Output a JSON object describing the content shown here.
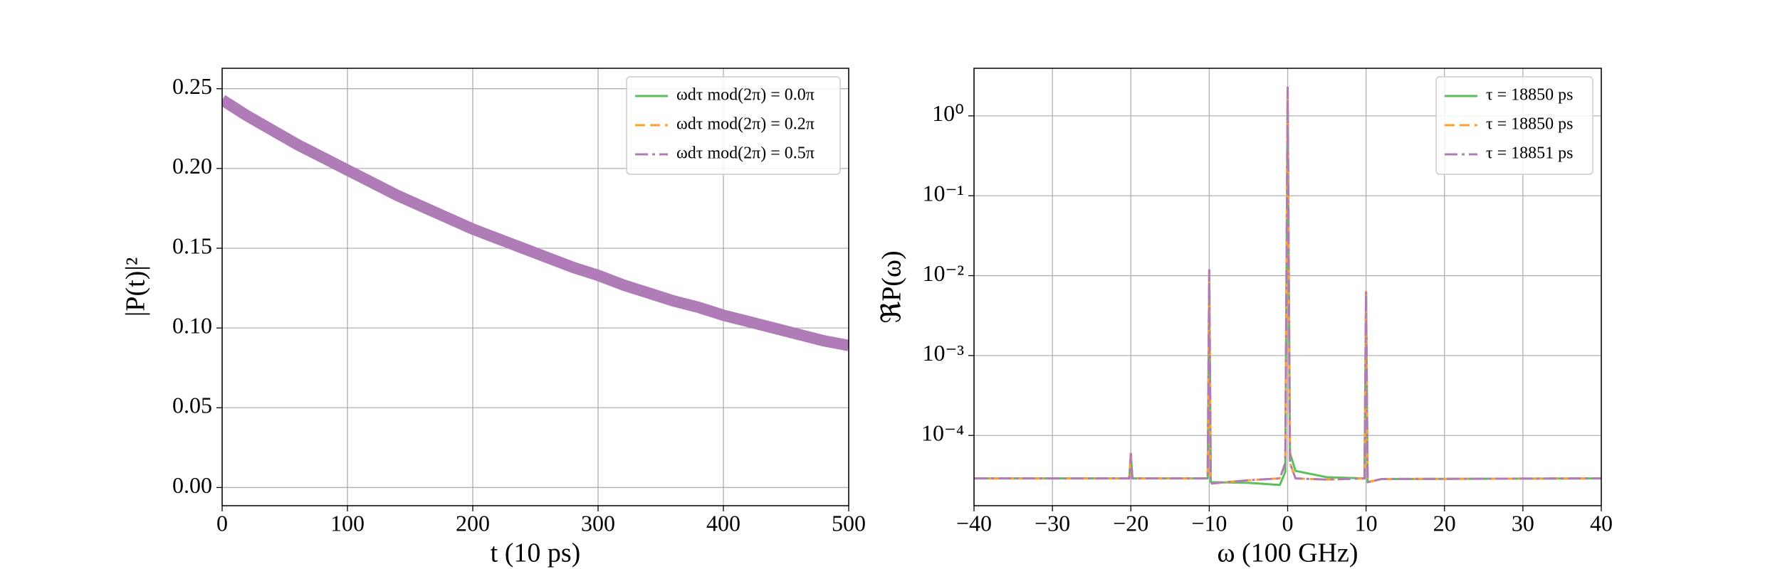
{
  "chart_data": [
    {
      "type": "line",
      "xlabel": "t (10 ps)",
      "ylabel": "|P(t)|²",
      "x": [
        0,
        20,
        40,
        60,
        80,
        100,
        120,
        140,
        160,
        180,
        200,
        220,
        240,
        260,
        280,
        300,
        320,
        340,
        360,
        380,
        400,
        420,
        440,
        460,
        480,
        500
      ],
      "series": [
        {
          "name": "ωdτ mod(2π) = 0.0π",
          "color": "#5cbf5c",
          "dash": "solid",
          "values": [
            0.243,
            0.233,
            0.224,
            0.215,
            0.207,
            0.199,
            0.191,
            0.183,
            0.176,
            0.169,
            0.162,
            0.156,
            0.15,
            0.144,
            0.138,
            0.133,
            0.127,
            0.122,
            0.117,
            0.113,
            0.108,
            0.104,
            0.1,
            0.096,
            0.092,
            0.089
          ]
        },
        {
          "name": "ωdτ mod(2π) = 0.2π",
          "color": "#ff9f2e",
          "dash": "dashed",
          "values": [
            0.243,
            0.233,
            0.224,
            0.215,
            0.207,
            0.199,
            0.191,
            0.183,
            0.176,
            0.169,
            0.162,
            0.156,
            0.15,
            0.144,
            0.138,
            0.133,
            0.127,
            0.122,
            0.117,
            0.113,
            0.108,
            0.104,
            0.1,
            0.096,
            0.092,
            0.089
          ]
        },
        {
          "name": "ωdτ mod(2π) = 0.5π",
          "color": "#b07cb8",
          "dash": "dashdot",
          "values": [
            0.243,
            0.233,
            0.224,
            0.215,
            0.207,
            0.199,
            0.191,
            0.183,
            0.176,
            0.169,
            0.162,
            0.156,
            0.15,
            0.144,
            0.138,
            0.133,
            0.127,
            0.122,
            0.117,
            0.113,
            0.108,
            0.104,
            0.1,
            0.096,
            0.092,
            0.089
          ]
        }
      ],
      "xlim": [
        0,
        500
      ],
      "xticks": [
        0,
        100,
        200,
        300,
        400,
        500
      ],
      "ylim": [
        -0.0114,
        0.2628
      ],
      "yticks": [
        {
          "value": 0,
          "label": "0.00"
        },
        {
          "value": 0.05,
          "label": "0.05"
        },
        {
          "value": 0.1,
          "label": "0.10"
        },
        {
          "value": 0.15,
          "label": "0.15"
        },
        {
          "value": 0.2,
          "label": "0.20"
        },
        {
          "value": 0.25,
          "label": "0.25"
        }
      ],
      "log_y": false,
      "grid": true,
      "legend": "upper right"
    },
    {
      "type": "line",
      "xlabel": "ω (100 GHz)",
      "ylabel": "ℜP(ω)",
      "x": [
        -40,
        -20.2,
        -20,
        -19.8,
        -10.2,
        -10,
        -9.8,
        -5,
        -1,
        -0.3,
        0,
        0.3,
        1,
        5,
        9.8,
        10,
        10.2,
        12,
        40
      ],
      "series": [
        {
          "name": "τ = 18850 ps",
          "color": "#5cbf5c",
          "dash": "solid",
          "values": [
            2.9e-05,
            2.9e-05,
            5.9e-05,
            2.9e-05,
            2.9e-05,
            0.0117,
            2.6e-05,
            2.55e-05,
            2.4e-05,
            3.5e-05,
            2.26,
            6e-05,
            3.6e-05,
            3e-05,
            2.9e-05,
            0.0063,
            2.6e-05,
            2.85e-05,
            2.9e-05
          ]
        },
        {
          "name": "τ = 18850 ps",
          "color": "#ff9f2e",
          "dash": "dashed",
          "values": [
            2.9e-05,
            2.9e-05,
            5.9e-05,
            2.9e-05,
            2.9e-05,
            0.0117,
            2.5e-05,
            2.75e-05,
            2.9e-05,
            4.5e-05,
            2.26,
            4.5e-05,
            2.9e-05,
            2.8e-05,
            2.9e-05,
            0.0063,
            2.6e-05,
            2.85e-05,
            2.9e-05
          ]
        },
        {
          "name": "τ = 18851 ps",
          "color": "#b07cb8",
          "dash": "dashdot",
          "values": [
            2.9e-05,
            2.9e-05,
            5.9e-05,
            2.9e-05,
            2.9e-05,
            0.0117,
            2.5e-05,
            2.75e-05,
            2.9e-05,
            4.5e-05,
            2.26,
            4.5e-05,
            2.9e-05,
            2.8e-05,
            2.9e-05,
            0.0063,
            2.6e-05,
            2.85e-05,
            2.9e-05
          ]
        }
      ],
      "xlim": [
        -40,
        40
      ],
      "xticks": [
        {
          "value": -40,
          "label": "−40"
        },
        {
          "value": -30,
          "label": "−30"
        },
        {
          "value": -20,
          "label": "−20"
        },
        {
          "value": -10,
          "label": "−10"
        },
        0,
        10,
        20,
        30,
        40
      ],
      "ylim": [
        1.32e-05,
        3.94
      ],
      "yticks": [
        {
          "value": 0.0001,
          "label": "10⁻⁴"
        },
        {
          "value": 0.001,
          "label": "10⁻³"
        },
        {
          "value": 0.01,
          "label": "10⁻²"
        },
        {
          "value": 0.1,
          "label": "10⁻¹"
        },
        {
          "value": 1,
          "label": "10⁰"
        }
      ],
      "log_y": true,
      "grid": true,
      "legend": "upper right"
    }
  ]
}
